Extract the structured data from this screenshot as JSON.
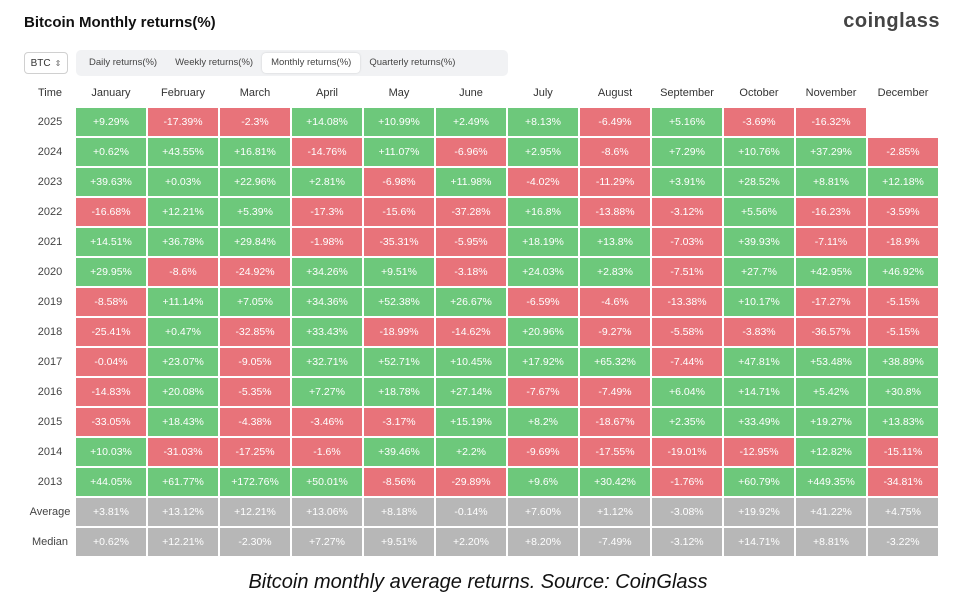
{
  "header": {
    "title": "Bitcoin Monthly returns(%)",
    "brand": "coinglass"
  },
  "asset_select": {
    "value": "BTC"
  },
  "tabs": [
    {
      "label": "Daily returns(%)",
      "active": false
    },
    {
      "label": "Weekly returns(%)",
      "active": false
    },
    {
      "label": "Monthly returns(%)",
      "active": true
    },
    {
      "label": "Quarterly returns(%)",
      "active": false
    }
  ],
  "table": {
    "time_header": "Time",
    "months": [
      "January",
      "February",
      "March",
      "April",
      "May",
      "June",
      "July",
      "August",
      "September",
      "October",
      "November",
      "December"
    ],
    "rows": [
      {
        "year": "2025",
        "values": [
          "+9.29%",
          "-17.39%",
          "-2.3%",
          "+14.08%",
          "+10.99%",
          "+2.49%",
          "+8.13%",
          "-6.49%",
          "+5.16%",
          "-3.69%",
          "-16.32%",
          ""
        ]
      },
      {
        "year": "2024",
        "values": [
          "+0.62%",
          "+43.55%",
          "+16.81%",
          "-14.76%",
          "+11.07%",
          "-6.96%",
          "+2.95%",
          "-8.6%",
          "+7.29%",
          "+10.76%",
          "+37.29%",
          "-2.85%"
        ]
      },
      {
        "year": "2023",
        "values": [
          "+39.63%",
          "+0.03%",
          "+22.96%",
          "+2.81%",
          "-6.98%",
          "+11.98%",
          "-4.02%",
          "-11.29%",
          "+3.91%",
          "+28.52%",
          "+8.81%",
          "+12.18%"
        ]
      },
      {
        "year": "2022",
        "values": [
          "-16.68%",
          "+12.21%",
          "+5.39%",
          "-17.3%",
          "-15.6%",
          "-37.28%",
          "+16.8%",
          "-13.88%",
          "-3.12%",
          "+5.56%",
          "-16.23%",
          "-3.59%"
        ]
      },
      {
        "year": "2021",
        "values": [
          "+14.51%",
          "+36.78%",
          "+29.84%",
          "-1.98%",
          "-35.31%",
          "-5.95%",
          "+18.19%",
          "+13.8%",
          "-7.03%",
          "+39.93%",
          "-7.11%",
          "-18.9%"
        ]
      },
      {
        "year": "2020",
        "values": [
          "+29.95%",
          "-8.6%",
          "-24.92%",
          "+34.26%",
          "+9.51%",
          "-3.18%",
          "+24.03%",
          "+2.83%",
          "-7.51%",
          "+27.7%",
          "+42.95%",
          "+46.92%"
        ]
      },
      {
        "year": "2019",
        "values": [
          "-8.58%",
          "+11.14%",
          "+7.05%",
          "+34.36%",
          "+52.38%",
          "+26.67%",
          "-6.59%",
          "-4.6%",
          "-13.38%",
          "+10.17%",
          "-17.27%",
          "-5.15%"
        ]
      },
      {
        "year": "2018",
        "values": [
          "-25.41%",
          "+0.47%",
          "-32.85%",
          "+33.43%",
          "-18.99%",
          "-14.62%",
          "+20.96%",
          "-9.27%",
          "-5.58%",
          "-3.83%",
          "-36.57%",
          "-5.15%"
        ]
      },
      {
        "year": "2017",
        "values": [
          "-0.04%",
          "+23.07%",
          "-9.05%",
          "+32.71%",
          "+52.71%",
          "+10.45%",
          "+17.92%",
          "+65.32%",
          "-7.44%",
          "+47.81%",
          "+53.48%",
          "+38.89%"
        ]
      },
      {
        "year": "2016",
        "values": [
          "-14.83%",
          "+20.08%",
          "-5.35%",
          "+7.27%",
          "+18.78%",
          "+27.14%",
          "-7.67%",
          "-7.49%",
          "+6.04%",
          "+14.71%",
          "+5.42%",
          "+30.8%"
        ]
      },
      {
        "year": "2015",
        "values": [
          "-33.05%",
          "+18.43%",
          "-4.38%",
          "-3.46%",
          "-3.17%",
          "+15.19%",
          "+8.2%",
          "-18.67%",
          "+2.35%",
          "+33.49%",
          "+19.27%",
          "+13.83%"
        ]
      },
      {
        "year": "2014",
        "values": [
          "+10.03%",
          "-31.03%",
          "-17.25%",
          "-1.6%",
          "+39.46%",
          "+2.2%",
          "-9.69%",
          "-17.55%",
          "-19.01%",
          "-12.95%",
          "+12.82%",
          "-15.11%"
        ]
      },
      {
        "year": "2013",
        "values": [
          "+44.05%",
          "+61.77%",
          "+172.76%",
          "+50.01%",
          "-8.56%",
          "-29.89%",
          "+9.6%",
          "+30.42%",
          "-1.76%",
          "+60.79%",
          "+449.35%",
          "-34.81%"
        ]
      }
    ],
    "summary": [
      {
        "label": "Average",
        "values": [
          "+3.81%",
          "+13.12%",
          "+12.21%",
          "+13.06%",
          "+8.18%",
          "-0.14%",
          "+7.60%",
          "+1.12%",
          "-3.08%",
          "+19.92%",
          "+41.22%",
          "+4.75%"
        ]
      },
      {
        "label": "Median",
        "values": [
          "+0.62%",
          "+12.21%",
          "-2.30%",
          "+7.27%",
          "+9.51%",
          "+2.20%",
          "+8.20%",
          "-7.49%",
          "-3.12%",
          "+14.71%",
          "+8.81%",
          "-3.22%"
        ]
      }
    ]
  },
  "colors": {
    "positive": "#6dc87b",
    "negative": "#e8737a",
    "summary": "#b7b7b7"
  },
  "caption": "Bitcoin monthly average returns. Source: CoinGlass"
}
